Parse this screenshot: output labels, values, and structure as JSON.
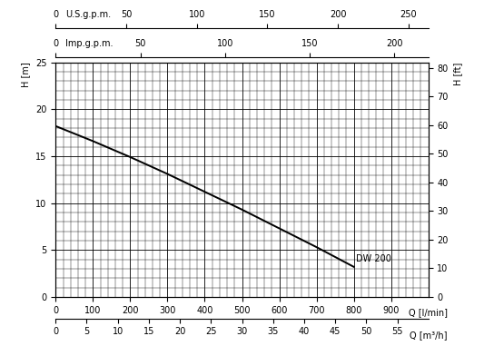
{
  "chart_data": {
    "type": "line",
    "x_label": "Q [l/min]",
    "y_label": "H [m]",
    "y2_label": "H [ft]",
    "x": [
      0,
      100,
      200,
      300,
      400,
      500,
      600,
      700,
      800
    ],
    "series": [
      {
        "name": "DW 200",
        "color": "#000000",
        "values": [
          18.2,
          16.6,
          14.9,
          13.1,
          11.2,
          9.3,
          7.3,
          5.3,
          3.2
        ]
      }
    ],
    "xlim": [
      0,
      1000
    ],
    "xticks": [
      0,
      100,
      200,
      300,
      400,
      500,
      600,
      700,
      800,
      900
    ],
    "ylim": [
      0,
      25
    ],
    "yticks": [
      0,
      5,
      10,
      15,
      20,
      25
    ],
    "y2lim": [
      0,
      82.02
    ],
    "y2ticks": [
      0,
      10,
      20,
      30,
      40,
      50,
      60,
      70,
      80
    ],
    "secondary_x_axes": [
      {
        "label": "Q [m³/h]",
        "xlim": [
          0,
          60
        ],
        "xticks": [
          0,
          5,
          10,
          15,
          20,
          25,
          30,
          35,
          40,
          45,
          50,
          55
        ]
      },
      {
        "label": "U.S.g.p.m.",
        "xlim": [
          0,
          264.17
        ],
        "xticks": [
          0,
          50,
          100,
          150,
          200,
          250
        ]
      },
      {
        "label": "Imp.g.p.m.",
        "xlim": [
          0,
          219.97
        ],
        "xticks": [
          0,
          50,
          100,
          150,
          200
        ]
      }
    ],
    "grid": true
  }
}
